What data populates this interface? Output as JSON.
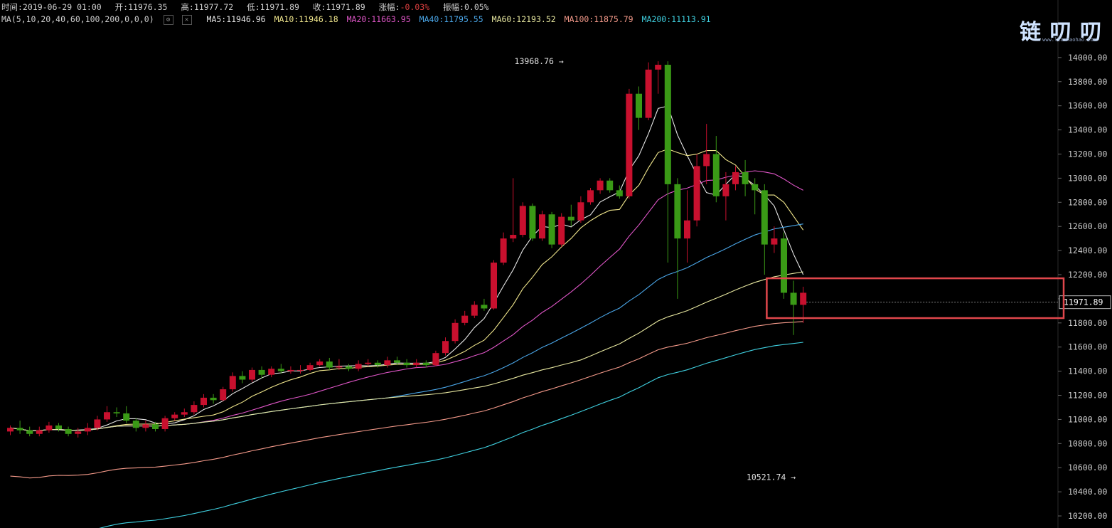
{
  "header": {
    "time": "时间:2019-06-29 01:00",
    "open": "开:11976.35",
    "high": "高:11977.72",
    "low": "低:11971.89",
    "close": "收:11971.89",
    "change_label": "涨幅:",
    "change_value": "-0.03%",
    "amplitude": "振幅:0.05%"
  },
  "ma_bar": {
    "title": "MA(5,10,20,40,60,100,200,0,0,0)",
    "settings_icon": "gear-icon",
    "close_icon": "close-icon",
    "items": [
      {
        "label": "MA5:11946.96",
        "color": "#e6e6e6"
      },
      {
        "label": "MA10:11946.18",
        "color": "#f0e68c"
      },
      {
        "label": "MA20:11663.95",
        "color": "#e056c8"
      },
      {
        "label": "MA40:11795.55",
        "color": "#4aa6e8"
      },
      {
        "label": "MA60:12193.52",
        "color": "#e8e8a0"
      },
      {
        "label": "MA100:11875.79",
        "color": "#f59a8a"
      },
      {
        "label": "MA200:11113.91",
        "color": "#3fd0e0"
      }
    ]
  },
  "logo": {
    "text": "链 叨 叨",
    "sub": "www.lianhaohao.com"
  },
  "chart_data": {
    "type": "candlestick",
    "ylim": [
      10100,
      14300
    ],
    "y_ticks": [
      "14000.00",
      "13800.00",
      "13600.00",
      "13400.00",
      "13200.00",
      "13000.00",
      "12800.00",
      "12600.00",
      "12400.00",
      "12200.00",
      "12000.00",
      "11800.00",
      "11600.00",
      "11400.00",
      "11200.00",
      "11000.00",
      "10800.00",
      "10600.00",
      "10400.00",
      "10200.00"
    ],
    "y_tick_values": [
      14000,
      13800,
      13600,
      13400,
      13200,
      13000,
      12800,
      12600,
      12400,
      12200,
      12000,
      11800,
      11600,
      11400,
      11200,
      11000,
      10800,
      10600,
      10400,
      10200
    ],
    "current_price_label": "11971.89",
    "current_price": 11971.89,
    "annotations": [
      {
        "text": "13968.76 →",
        "value": 13968.76,
        "index": 58
      },
      {
        "text": "10521.74 →",
        "value": 10521.74,
        "index": 82
      }
    ],
    "candles": [
      [
        10900,
        10930,
        10870,
        10950
      ],
      [
        10930,
        10910,
        10880,
        10990
      ],
      [
        10910,
        10880,
        10860,
        10940
      ],
      [
        10880,
        10910,
        10860,
        10940
      ],
      [
        10910,
        10950,
        10890,
        10980
      ],
      [
        10950,
        10920,
        10900,
        10970
      ],
      [
        10920,
        10880,
        10860,
        10940
      ],
      [
        10880,
        10900,
        10850,
        10930
      ],
      [
        10900,
        10930,
        10870,
        10970
      ],
      [
        10930,
        11000,
        10910,
        11030
      ],
      [
        11000,
        11060,
        10980,
        11110
      ],
      [
        11060,
        11050,
        11020,
        11100
      ],
      [
        11050,
        10990,
        10970,
        11110
      ],
      [
        10990,
        10930,
        10900,
        11010
      ],
      [
        10930,
        10960,
        10900,
        10990
      ],
      [
        10960,
        10920,
        10900,
        10980
      ],
      [
        10920,
        11010,
        10900,
        11030
      ],
      [
        11010,
        11040,
        10990,
        11060
      ],
      [
        11040,
        11060,
        11020,
        11090
      ],
      [
        11060,
        11120,
        11040,
        11150
      ],
      [
        11120,
        11180,
        11100,
        11210
      ],
      [
        11180,
        11160,
        11130,
        11210
      ],
      [
        11160,
        11250,
        11150,
        11270
      ],
      [
        11250,
        11360,
        11230,
        11390
      ],
      [
        11360,
        11330,
        11300,
        11400
      ],
      [
        11330,
        11410,
        11310,
        11430
      ],
      [
        11410,
        11370,
        11340,
        11440
      ],
      [
        11370,
        11420,
        11350,
        11440
      ],
      [
        11420,
        11400,
        11380,
        11460
      ],
      [
        11400,
        11410,
        11380,
        11440
      ],
      [
        11410,
        11410,
        11380,
        11450
      ],
      [
        11410,
        11450,
        11400,
        11470
      ],
      [
        11450,
        11480,
        11440,
        11500
      ],
      [
        11480,
        11430,
        11410,
        11510
      ],
      [
        11430,
        11440,
        11410,
        11500
      ],
      [
        11440,
        11420,
        11400,
        11460
      ],
      [
        11420,
        11460,
        11400,
        11490
      ],
      [
        11460,
        11470,
        11440,
        11500
      ],
      [
        11470,
        11450,
        11430,
        11490
      ],
      [
        11450,
        11490,
        11430,
        11520
      ],
      [
        11490,
        11470,
        11450,
        11520
      ],
      [
        11470,
        11450,
        11430,
        11500
      ],
      [
        11450,
        11470,
        11430,
        11500
      ],
      [
        11470,
        11450,
        11430,
        11490
      ],
      [
        11450,
        11550,
        11440,
        11570
      ],
      [
        11550,
        11650,
        11530,
        11680
      ],
      [
        11650,
        11800,
        11630,
        11830
      ],
      [
        11800,
        11860,
        11780,
        11900
      ],
      [
        11860,
        11950,
        11840,
        11980
      ],
      [
        11950,
        11920,
        11900,
        12000
      ],
      [
        11920,
        12300,
        11910,
        12320
      ],
      [
        12300,
        12500,
        12280,
        12550
      ],
      [
        12500,
        12530,
        12470,
        13000
      ],
      [
        12530,
        12770,
        12510,
        12800
      ],
      [
        12770,
        12500,
        12480,
        12790
      ],
      [
        12500,
        12700,
        12480,
        12730
      ],
      [
        12700,
        12450,
        12420,
        12720
      ],
      [
        12450,
        12680,
        12430,
        12710
      ],
      [
        12680,
        12650,
        12600,
        12780
      ],
      [
        12650,
        12800,
        12630,
        12850
      ],
      [
        12800,
        12900,
        12780,
        12920
      ],
      [
        12900,
        12980,
        12870,
        13000
      ],
      [
        12980,
        12900,
        12880,
        13000
      ],
      [
        12900,
        12850,
        12830,
        12940
      ],
      [
        12850,
        13700,
        12830,
        13740
      ],
      [
        13700,
        13500,
        13400,
        13760
      ],
      [
        13500,
        13900,
        13480,
        13960
      ],
      [
        13900,
        13940,
        13700,
        13969
      ],
      [
        13940,
        12950,
        12300,
        13969
      ],
      [
        12950,
        12500,
        12000,
        13000
      ],
      [
        12500,
        12650,
        12300,
        12900
      ],
      [
        12650,
        13100,
        12600,
        13200
      ],
      [
        13100,
        13200,
        12950,
        13450
      ],
      [
        13200,
        12850,
        12800,
        13350
      ],
      [
        12850,
        12950,
        12650,
        13050
      ],
      [
        12950,
        13050,
        12900,
        13100
      ],
      [
        13050,
        12950,
        12850,
        13150
      ],
      [
        12950,
        12900,
        12700,
        13000
      ],
      [
        12900,
        12450,
        12200,
        12950
      ],
      [
        12450,
        12500,
        12380,
        12600
      ],
      [
        12500,
        12050,
        12000,
        12550
      ],
      [
        12050,
        11950,
        11700,
        12150
      ],
      [
        11950,
        12050,
        11800,
        12100
      ]
    ]
  }
}
